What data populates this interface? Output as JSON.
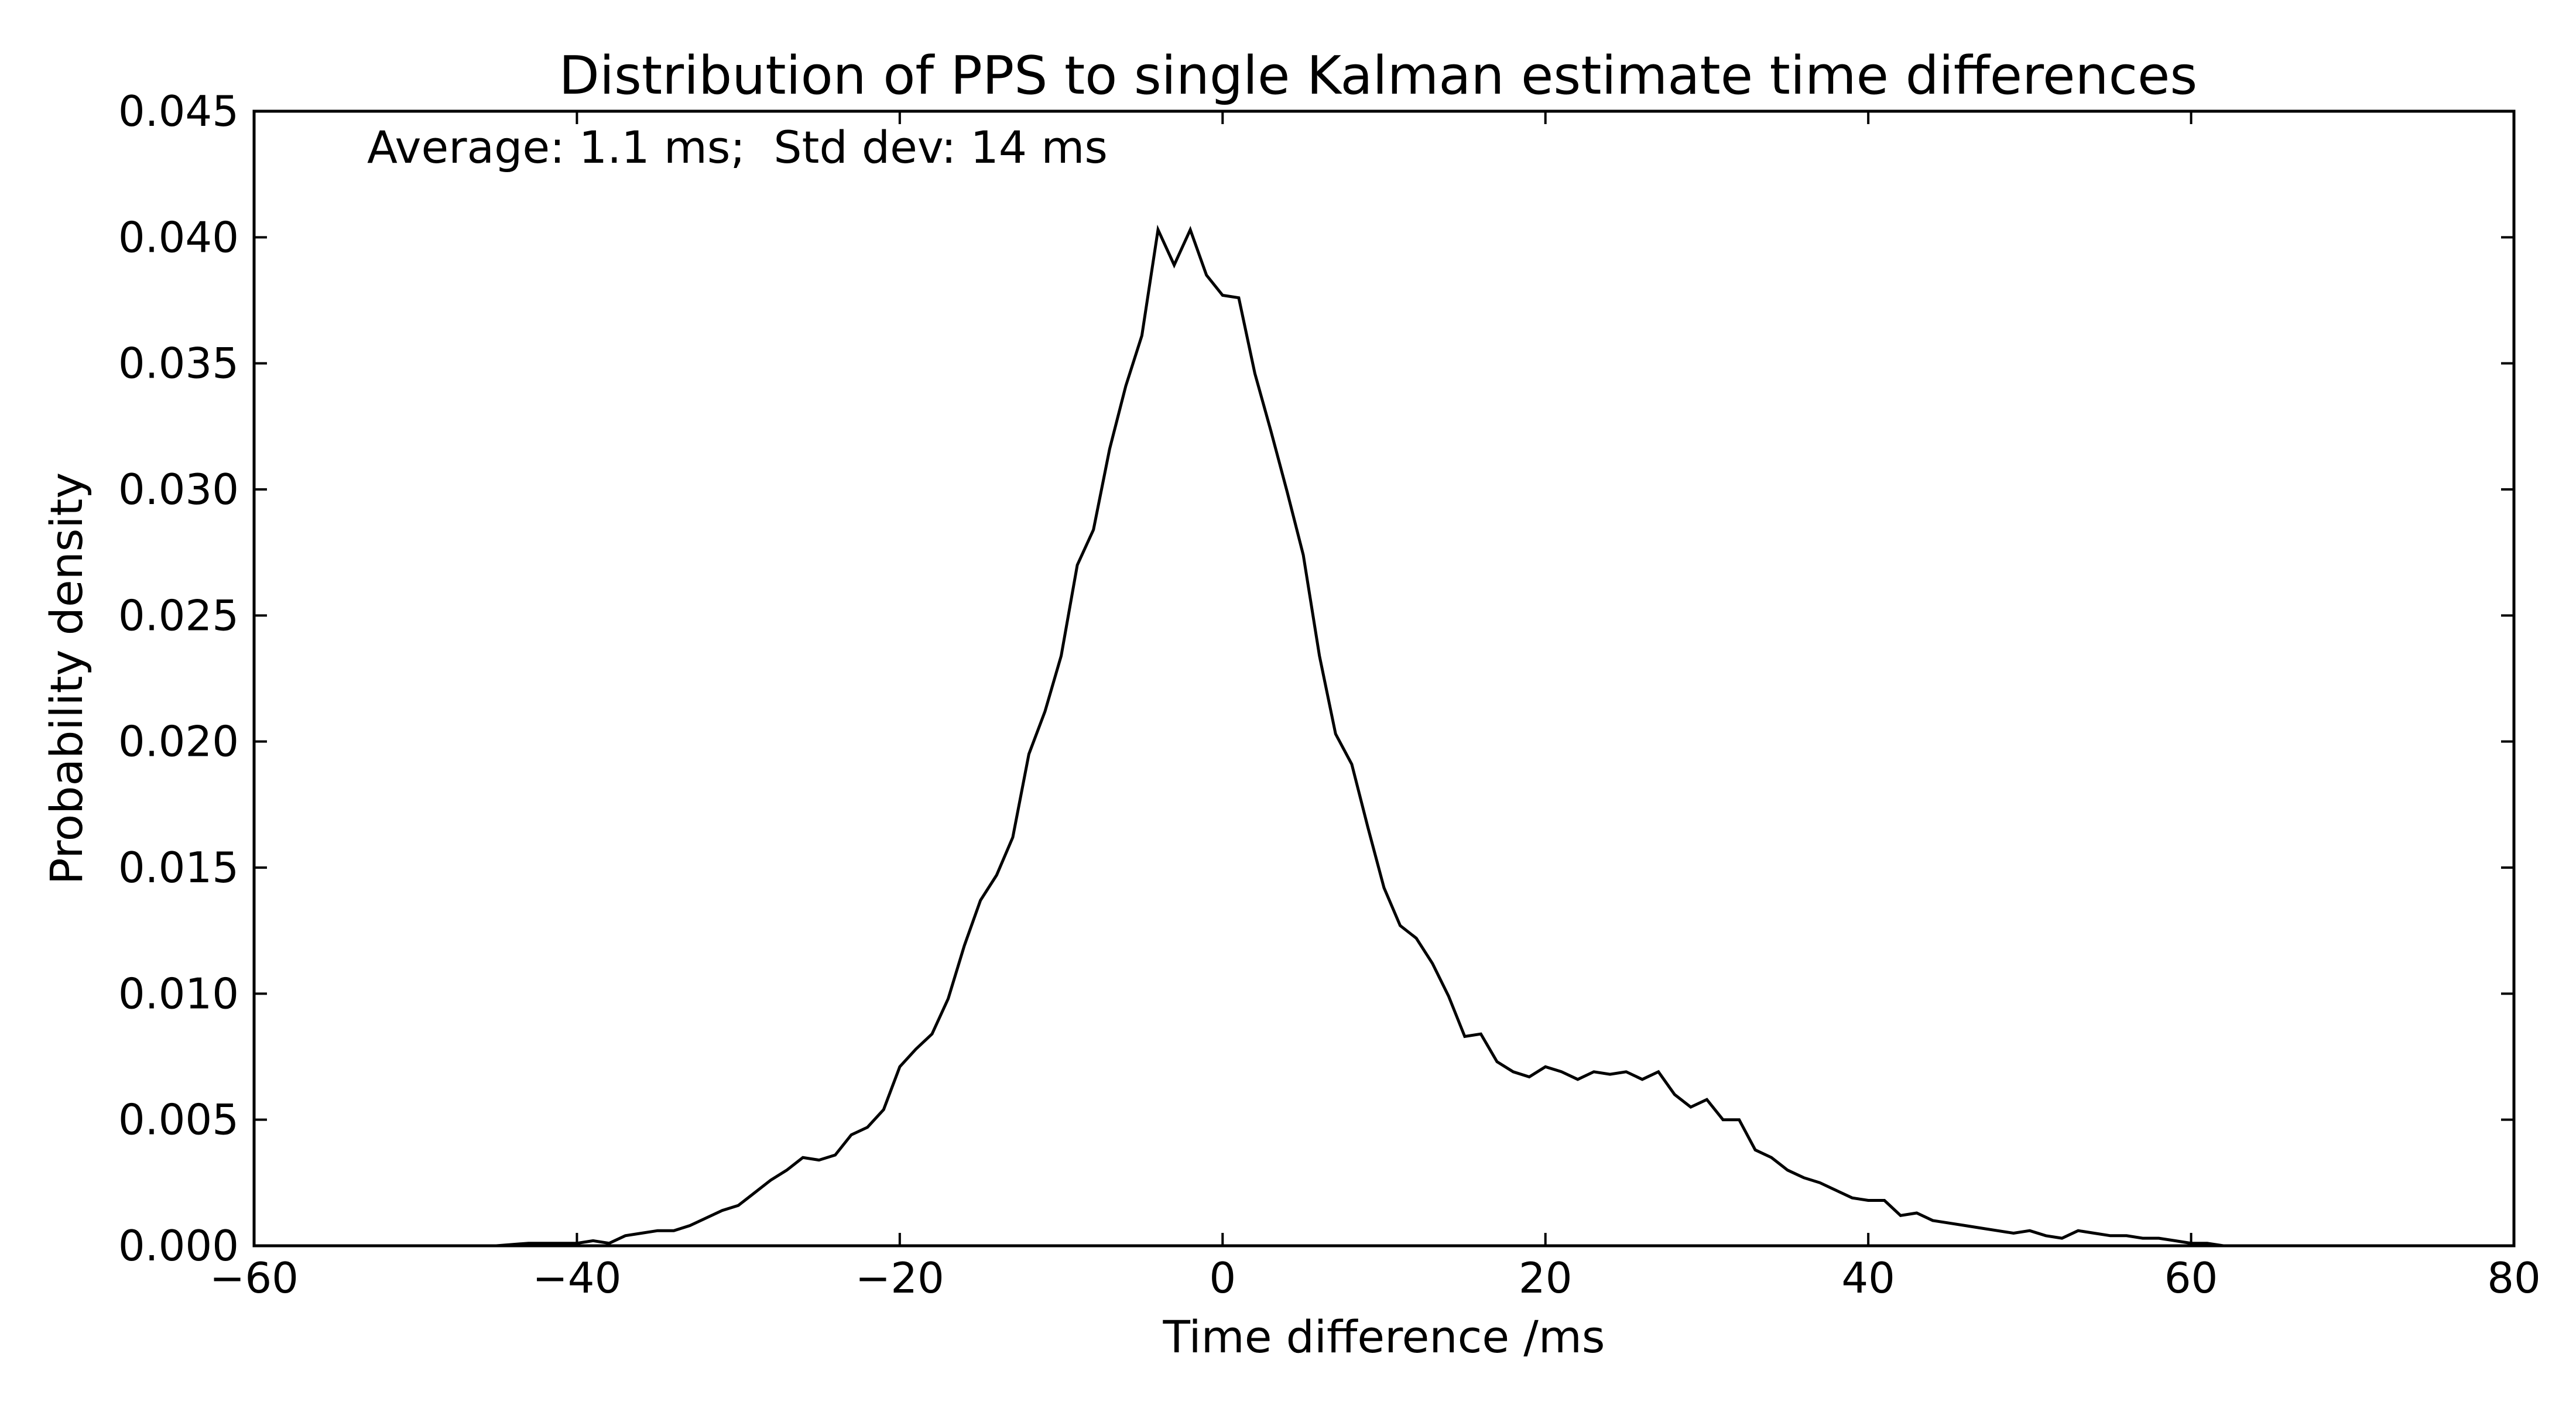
{
  "chart_data": {
    "type": "line",
    "title": "Distribution of PPS to single Kalman estimate time differences",
    "xlabel": "Time difference /ms",
    "ylabel": "Probability density",
    "annotation": "Average: 1.1 ms;  Std dev: 14 ms",
    "xlim": [
      -60,
      80
    ],
    "ylim": [
      0,
      0.045
    ],
    "xticks": [
      "−60",
      "−40",
      "−20",
      "0",
      "20",
      "40",
      "60",
      "80"
    ],
    "yticks": [
      "0.000",
      "0.005",
      "0.010",
      "0.015",
      "0.020",
      "0.025",
      "0.030",
      "0.035",
      "0.040",
      "0.045"
    ],
    "grid": false,
    "line_color": "#000000",
    "series": [
      {
        "x": [
          -50,
          -47,
          -45,
          -43,
          -42,
          -41,
          -40,
          -39,
          -38,
          -37,
          -36,
          -35,
          -34,
          -33,
          -32,
          -31,
          -30,
          -29,
          -28,
          -27,
          -26,
          -25,
          -24,
          -23,
          -22,
          -21,
          -20,
          -19,
          -18,
          -17,
          -16,
          -15,
          -14,
          -13,
          -12,
          -11,
          -10,
          -9,
          -8,
          -7,
          -6,
          -5,
          -4,
          -3,
          -2,
          -1,
          0,
          1,
          2,
          3,
          4,
          5,
          6,
          7,
          8,
          9,
          10,
          11,
          12,
          13,
          14,
          15,
          16,
          17,
          18,
          19,
          20,
          21,
          22,
          23,
          24,
          25,
          26,
          27,
          28,
          29,
          30,
          31,
          32,
          33,
          34,
          35,
          36,
          37,
          38,
          39,
          40,
          41,
          42,
          43,
          44,
          45,
          46,
          47,
          48,
          49,
          50,
          51,
          52,
          53,
          54,
          55,
          56,
          57,
          58,
          59,
          60,
          61,
          62,
          63,
          64,
          65,
          66,
          68,
          70,
          72,
          74
        ],
        "y": [
          0.0,
          0.0,
          0.0,
          0.0001,
          0.0001,
          0.0001,
          0.0001,
          0.0002,
          0.0001,
          0.0004,
          0.0005,
          0.0006,
          0.0006,
          0.0008,
          0.0011,
          0.0014,
          0.0016,
          0.0021,
          0.0026,
          0.003,
          0.0035,
          0.0034,
          0.0036,
          0.0044,
          0.0047,
          0.0054,
          0.0071,
          0.0078,
          0.0084,
          0.0098,
          0.0119,
          0.0137,
          0.0147,
          0.0162,
          0.0195,
          0.0212,
          0.0234,
          0.027,
          0.0284,
          0.0316,
          0.0341,
          0.0361,
          0.0403,
          0.0389,
          0.0403,
          0.0385,
          0.0377,
          0.0376,
          0.0346,
          0.0323,
          0.0299,
          0.0274,
          0.0234,
          0.0203,
          0.0191,
          0.0166,
          0.0142,
          0.0127,
          0.0122,
          0.0112,
          0.0099,
          0.0083,
          0.0084,
          0.0073,
          0.0069,
          0.0067,
          0.0071,
          0.0069,
          0.0066,
          0.0069,
          0.0068,
          0.0069,
          0.0066,
          0.0069,
          0.006,
          0.0055,
          0.0058,
          0.005,
          0.005,
          0.0038,
          0.0035,
          0.003,
          0.0027,
          0.0025,
          0.0022,
          0.0019,
          0.0018,
          0.0018,
          0.0012,
          0.0013,
          0.001,
          0.0009,
          0.0008,
          0.0007,
          0.0006,
          0.0005,
          0.0006,
          0.0004,
          0.0003,
          0.0006,
          0.0005,
          0.0004,
          0.0004,
          0.0003,
          0.0003,
          0.0002,
          0.0001,
          0.0001,
          0.0,
          0.0,
          0.0,
          0.0,
          0.0,
          0.0,
          0.0,
          0.0,
          0.0
        ]
      }
    ]
  }
}
